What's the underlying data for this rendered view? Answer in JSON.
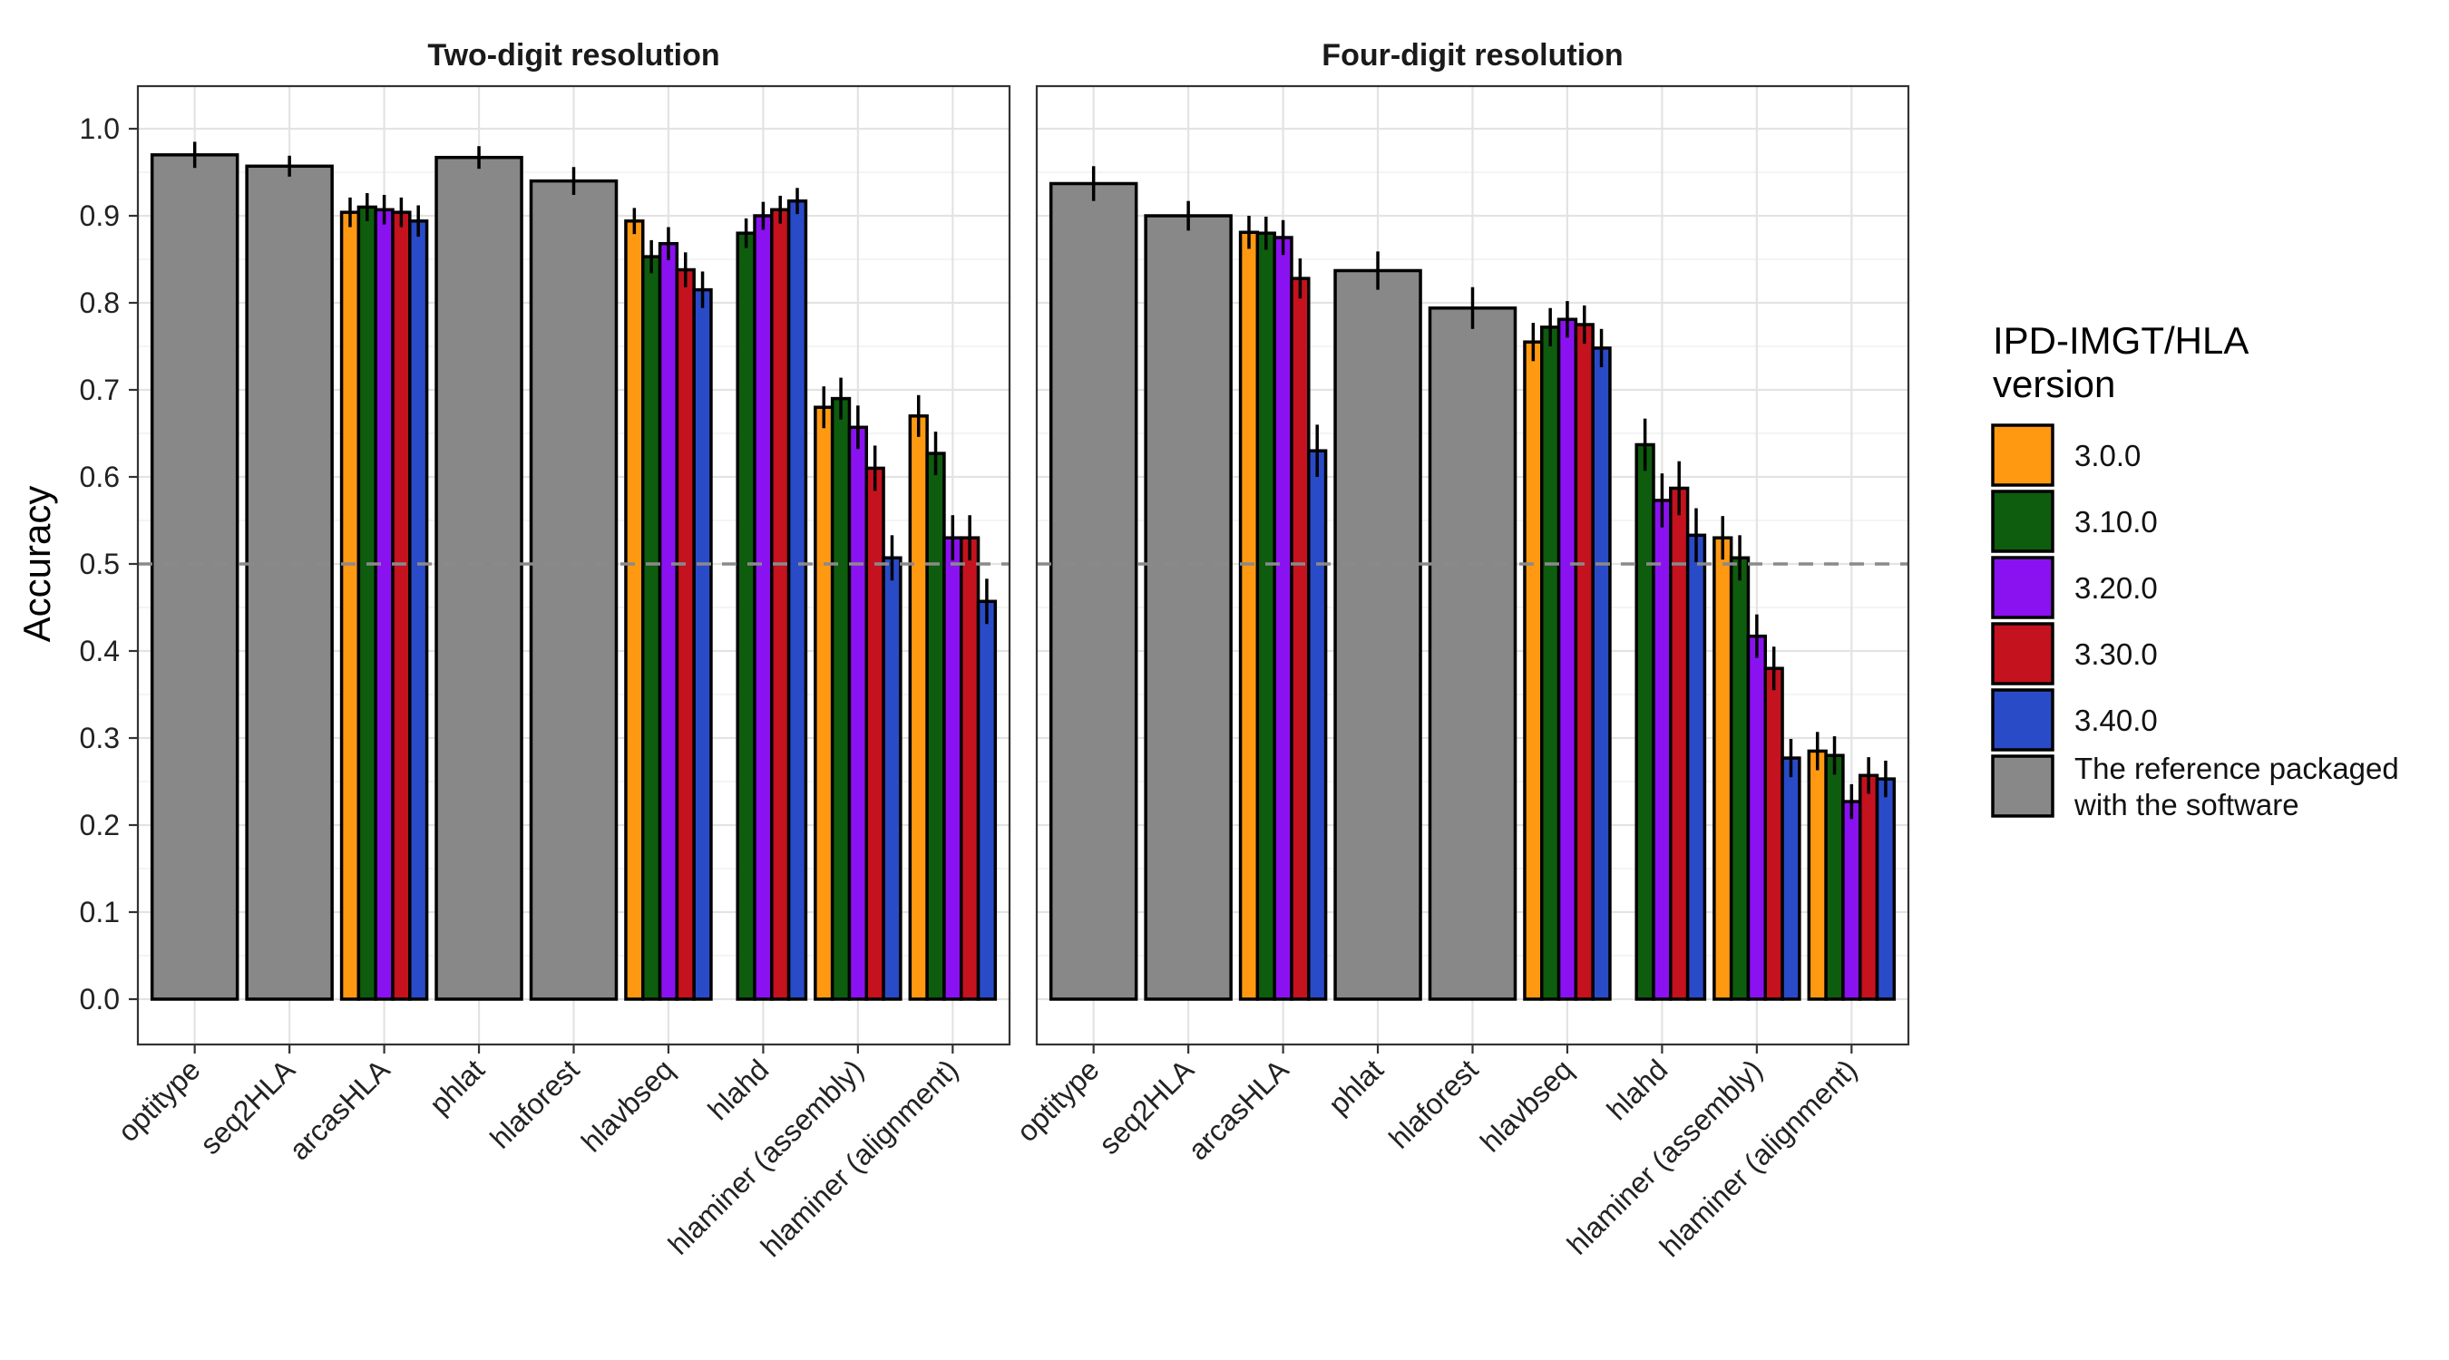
{
  "chart_data": {
    "type": "bar",
    "ylabel": "Accuracy",
    "ylim": [
      0,
      1.0
    ],
    "yticks": [
      "0.0",
      "0.1",
      "0.2",
      "0.3",
      "0.4",
      "0.5",
      "0.6",
      "0.7",
      "0.8",
      "0.9",
      "1.0"
    ],
    "reference_line": 0.5,
    "categories": [
      "optitype",
      "seq2HLA",
      "arcasHLA",
      "phlat",
      "hlaforest",
      "hlavbseq",
      "hlahd",
      "hlaminer (assembly)",
      "hlaminer (alignment)"
    ],
    "legend": {
      "title_lines": [
        "IPD-IMGT/HLA",
        "version"
      ],
      "placement": "right",
      "entries": [
        {
          "key": "v300",
          "label_lines": [
            "3.0.0"
          ],
          "color": "#FF9912"
        },
        {
          "key": "v310",
          "label_lines": [
            "3.10.0"
          ],
          "color": "#0E5C0E"
        },
        {
          "key": "v320",
          "label_lines": [
            "3.20.0"
          ],
          "color": "#8B12F0"
        },
        {
          "key": "v330",
          "label_lines": [
            "3.30.0"
          ],
          "color": "#C4121E"
        },
        {
          "key": "v340",
          "label_lines": [
            "3.40.0"
          ],
          "color": "#2A4BC8"
        },
        {
          "key": "ref",
          "label_lines": [
            "The reference packaged",
            "with the software"
          ],
          "color": "#888888"
        }
      ]
    },
    "panels": [
      {
        "title": "Two-digit resolution",
        "groups": [
          {
            "category": "optitype",
            "bars": [
              {
                "version": "ref",
                "value": 0.97,
                "err": 0.015
              }
            ]
          },
          {
            "category": "seq2HLA",
            "bars": [
              {
                "version": "ref",
                "value": 0.957,
                "err": 0.012
              }
            ]
          },
          {
            "category": "arcasHLA",
            "bars": [
              {
                "version": "v300",
                "value": 0.904,
                "err": 0.017
              },
              {
                "version": "v310",
                "value": 0.91,
                "err": 0.016
              },
              {
                "version": "v320",
                "value": 0.907,
                "err": 0.017
              },
              {
                "version": "v330",
                "value": 0.904,
                "err": 0.017
              },
              {
                "version": "v340",
                "value": 0.894,
                "err": 0.018
              }
            ]
          },
          {
            "category": "phlat",
            "bars": [
              {
                "version": "ref",
                "value": 0.967,
                "err": 0.013
              }
            ]
          },
          {
            "category": "hlaforest",
            "bars": [
              {
                "version": "ref",
                "value": 0.94,
                "err": 0.016
              }
            ]
          },
          {
            "category": "hlavbseq",
            "bars": [
              {
                "version": "v300",
                "value": 0.894,
                "err": 0.015
              },
              {
                "version": "v310",
                "value": 0.853,
                "err": 0.019
              },
              {
                "version": "v320",
                "value": 0.868,
                "err": 0.019
              },
              {
                "version": "v330",
                "value": 0.838,
                "err": 0.02
              },
              {
                "version": "v340",
                "value": 0.815,
                "err": 0.021
              }
            ]
          },
          {
            "category": "hlahd",
            "bars": [
              {
                "version": "v300",
                "value": 0.0,
                "err": 0
              },
              {
                "version": "v310",
                "value": 0.88,
                "err": 0.017
              },
              {
                "version": "v320",
                "value": 0.9,
                "err": 0.016
              },
              {
                "version": "v330",
                "value": 0.907,
                "err": 0.016
              },
              {
                "version": "v340",
                "value": 0.917,
                "err": 0.015
              }
            ]
          },
          {
            "category": "hlaminer (assembly)",
            "bars": [
              {
                "version": "v300",
                "value": 0.68,
                "err": 0.024
              },
              {
                "version": "v310",
                "value": 0.69,
                "err": 0.024
              },
              {
                "version": "v320",
                "value": 0.657,
                "err": 0.025
              },
              {
                "version": "v330",
                "value": 0.61,
                "err": 0.026
              },
              {
                "version": "v340",
                "value": 0.507,
                "err": 0.026
              }
            ]
          },
          {
            "category": "hlaminer (alignment)",
            "bars": [
              {
                "version": "v300",
                "value": 0.67,
                "err": 0.024
              },
              {
                "version": "v310",
                "value": 0.627,
                "err": 0.025
              },
              {
                "version": "v320",
                "value": 0.53,
                "err": 0.026
              },
              {
                "version": "v330",
                "value": 0.53,
                "err": 0.026
              },
              {
                "version": "v340",
                "value": 0.457,
                "err": 0.026
              }
            ]
          }
        ]
      },
      {
        "title": "Four-digit resolution",
        "groups": [
          {
            "category": "optitype",
            "bars": [
              {
                "version": "ref",
                "value": 0.937,
                "err": 0.02
              }
            ]
          },
          {
            "category": "seq2HLA",
            "bars": [
              {
                "version": "ref",
                "value": 0.9,
                "err": 0.017
              }
            ]
          },
          {
            "category": "arcasHLA",
            "bars": [
              {
                "version": "v300",
                "value": 0.881,
                "err": 0.019
              },
              {
                "version": "v310",
                "value": 0.88,
                "err": 0.019
              },
              {
                "version": "v320",
                "value": 0.875,
                "err": 0.02
              },
              {
                "version": "v330",
                "value": 0.828,
                "err": 0.023
              },
              {
                "version": "v340",
                "value": 0.63,
                "err": 0.03
              }
            ]
          },
          {
            "category": "phlat",
            "bars": [
              {
                "version": "ref",
                "value": 0.837,
                "err": 0.022
              }
            ]
          },
          {
            "category": "hlaforest",
            "bars": [
              {
                "version": "ref",
                "value": 0.794,
                "err": 0.024
              }
            ]
          },
          {
            "category": "hlavbseq",
            "bars": [
              {
                "version": "v300",
                "value": 0.755,
                "err": 0.022
              },
              {
                "version": "v310",
                "value": 0.772,
                "err": 0.022
              },
              {
                "version": "v320",
                "value": 0.781,
                "err": 0.021
              },
              {
                "version": "v330",
                "value": 0.775,
                "err": 0.022
              },
              {
                "version": "v340",
                "value": 0.748,
                "err": 0.022
              }
            ]
          },
          {
            "category": "hlahd",
            "bars": [
              {
                "version": "v300",
                "value": 0.0,
                "err": 0
              },
              {
                "version": "v310",
                "value": 0.637,
                "err": 0.03
              },
              {
                "version": "v320",
                "value": 0.573,
                "err": 0.031
              },
              {
                "version": "v330",
                "value": 0.587,
                "err": 0.031
              },
              {
                "version": "v340",
                "value": 0.533,
                "err": 0.031
              }
            ]
          },
          {
            "category": "hlaminer (assembly)",
            "bars": [
              {
                "version": "v300",
                "value": 0.53,
                "err": 0.025
              },
              {
                "version": "v310",
                "value": 0.507,
                "err": 0.026
              },
              {
                "version": "v320",
                "value": 0.417,
                "err": 0.025
              },
              {
                "version": "v330",
                "value": 0.38,
                "err": 0.025
              },
              {
                "version": "v340",
                "value": 0.277,
                "err": 0.022
              }
            ]
          },
          {
            "category": "hlaminer (alignment)",
            "bars": [
              {
                "version": "v300",
                "value": 0.285,
                "err": 0.022
              },
              {
                "version": "v310",
                "value": 0.28,
                "err": 0.022
              },
              {
                "version": "v320",
                "value": 0.227,
                "err": 0.02
              },
              {
                "version": "v330",
                "value": 0.257,
                "err": 0.021
              },
              {
                "version": "v340",
                "value": 0.253,
                "err": 0.021
              }
            ]
          }
        ]
      }
    ]
  }
}
